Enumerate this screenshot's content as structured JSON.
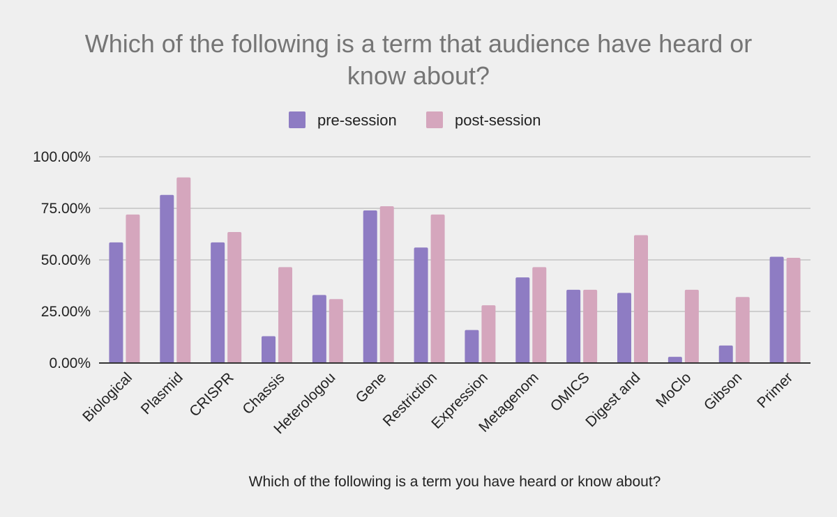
{
  "chart_data": {
    "type": "bar",
    "title_lines": [
      "Which of the following is a term that audience have heard or",
      "know about?"
    ],
    "xlabel": "Which of the following is a term you have heard or know about?",
    "ylabel": "",
    "ylim": [
      0,
      1
    ],
    "y_ticks": [
      0,
      0.25,
      0.5,
      0.75,
      1
    ],
    "y_tick_labels": [
      "0.00%",
      "25.00%",
      "50.00%",
      "75.00%",
      "100.00%"
    ],
    "grid": true,
    "legend_position": "top",
    "categories": [
      "Biological",
      "Plasmid",
      "CRISPR",
      "Chassis",
      "Heterologou",
      "Gene",
      "Restriction",
      "Expression",
      "Metagenom",
      "OMICS",
      "Digest and",
      "MoClo",
      "Gibson",
      "Primer"
    ],
    "series": [
      {
        "name": "pre-session",
        "color": "#8e7cc3",
        "values": [
          0.585,
          0.815,
          0.585,
          0.13,
          0.33,
          0.74,
          0.56,
          0.16,
          0.415,
          0.355,
          0.34,
          0.03,
          0.085,
          0.515
        ]
      },
      {
        "name": "post-session",
        "color": "#d5a6bd",
        "values": [
          0.72,
          0.9,
          0.635,
          0.465,
          0.31,
          0.76,
          0.72,
          0.28,
          0.465,
          0.355,
          0.62,
          0.355,
          0.32,
          0.51
        ]
      }
    ]
  }
}
